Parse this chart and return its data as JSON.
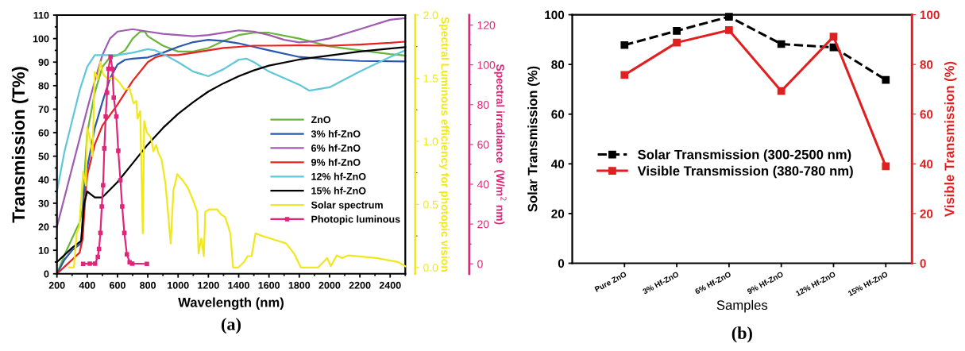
{
  "chart_data": [
    {
      "type": "line",
      "xlabel": "Wavelength (nm)",
      "ylabel": "Transmission (T%)",
      "y2label": "Spectral Luminous efficiency for photopic vision",
      "y3label": "Spectral irradiance  (W/m$^{2}$ nm)",
      "annotations": [
        "(a)"
      ],
      "legend": "center right",
      "xlim": [
        200,
        2500
      ],
      "xticks": [
        200,
        400,
        600,
        800,
        1000,
        1200,
        1400,
        1600,
        1800,
        2000,
        2200,
        2400
      ],
      "ylim": [
        0,
        110
      ],
      "yticks": [
        0,
        10,
        20,
        30,
        40,
        50,
        60,
        70,
        80,
        90,
        100,
        110
      ],
      "y2lim": [
        -0.05,
        2.0
      ],
      "y2ticks": [
        {
          "value": 0,
          "label": "0.0"
        },
        {
          "value": 0.5,
          "label": "0.5"
        },
        {
          "value": 1,
          "label": "1.0"
        },
        {
          "value": 1.5,
          "label": "1.5"
        },
        {
          "value": 2,
          "label": "2.0"
        }
      ],
      "y3lim": [
        -5,
        125
      ],
      "y3ticks": [
        0,
        20,
        40,
        60,
        80,
        100,
        120
      ],
      "series": [
        {
          "name": "ZnO",
          "color": "#6ab53b",
          "x": [
            200,
            250,
            300,
            350,
            370,
            380,
            400,
            450,
            500,
            550,
            600,
            650,
            700,
            750,
            780,
            800,
            900,
            1000,
            1100,
            1200,
            1300,
            1400,
            1500,
            1600,
            1800,
            2000,
            2200,
            2400,
            2500
          ],
          "values": [
            0,
            8,
            15,
            22,
            28,
            40,
            60,
            77,
            88,
            92,
            93,
            95,
            100,
            103,
            103,
            101,
            97,
            94.5,
            94.5,
            96,
            99,
            101.5,
            102.5,
            102.5,
            100,
            96.7,
            95,
            93.4,
            92.8
          ]
        },
        {
          "name": "3% hf-ZnO",
          "color": "#2a57b0",
          "x": [
            200,
            250,
            300,
            360,
            380,
            400,
            450,
            500,
            550,
            600,
            650,
            700,
            800,
            900,
            1000,
            1100,
            1200,
            1300,
            1400,
            1500,
            1600,
            1800,
            2000,
            2200,
            2500
          ],
          "values": [
            0,
            6,
            10,
            13,
            35,
            45,
            62,
            73,
            83,
            89,
            91,
            91.5,
            92,
            94,
            96.5,
            98.5,
            99.5,
            99,
            98,
            96.5,
            95,
            92.2,
            91.1,
            90.5,
            90.3
          ]
        },
        {
          "name": "6% hf-ZnO",
          "color": "#a05cb0",
          "x": [
            200,
            300,
            400,
            450,
            500,
            550,
            600,
            700,
            800,
            900,
            1000,
            1100,
            1200,
            1300,
            1400,
            1500,
            1600,
            1700,
            1800,
            1900,
            2000,
            2200,
            2400,
            2500
          ],
          "values": [
            20,
            45,
            70,
            82,
            93,
            100,
            103,
            104,
            103,
            102,
            101.5,
            101,
            101.5,
            102.5,
            103.5,
            103,
            101.5,
            99.5,
            98.4,
            98.9,
            100.1,
            104,
            108,
            108.7
          ]
        },
        {
          "name": "9% hf-ZnO",
          "color": "#e8231f",
          "x": [
            200,
            250,
            300,
            350,
            370,
            390,
            400,
            450,
            500,
            600,
            700,
            800,
            850,
            900,
            1000,
            1100,
            1200,
            1300,
            1400,
            1500,
            1600,
            1800,
            2000,
            2200,
            2400,
            2500
          ],
          "values": [
            0,
            3,
            6,
            9,
            15,
            35,
            42,
            55,
            63,
            72,
            82,
            90,
            92,
            93,
            93,
            94,
            95,
            96,
            96.5,
            97,
            97,
            97.1,
            97,
            97.5,
            98.2,
            98.7
          ]
        },
        {
          "name": "12% hf-ZnO",
          "color": "#5fc8d8",
          "x": [
            200,
            250,
            300,
            350,
            400,
            450,
            500,
            600,
            700,
            800,
            850,
            900,
            1000,
            1100,
            1200,
            1300,
            1400,
            1450,
            1500,
            1600,
            1800,
            1865,
            2000,
            2200,
            2400,
            2500
          ],
          "values": [
            35,
            52,
            65,
            78,
            88,
            93,
            93,
            93,
            94,
            95.5,
            95,
            93.5,
            90,
            86,
            84,
            87,
            91,
            91.5,
            90,
            86,
            80.4,
            77.9,
            79.3,
            86,
            92.2,
            95
          ]
        },
        {
          "name": "15% hf-ZnO",
          "color": "#000000",
          "x": [
            200,
            300,
            360,
            380,
            400,
            450,
            500,
            600,
            700,
            800,
            900,
            1000,
            1100,
            1200,
            1300,
            1400,
            1500,
            1600,
            1800,
            2000,
            2200,
            2400,
            2500
          ],
          "values": [
            5,
            11,
            14,
            30,
            35,
            32.5,
            32.5,
            39,
            47,
            55,
            62,
            68,
            73,
            77.5,
            81,
            84,
            86.5,
            88.5,
            91.1,
            92.8,
            94.5,
            95.8,
            96.4
          ]
        },
        {
          "name": "Solar spectrum",
          "color": "#f0e81c",
          "axis": "y2",
          "x": [
            280,
            312,
            330,
            347,
            373,
            391,
            400,
            417,
            435,
            449,
            470,
            487,
            505,
            540,
            575,
            610,
            645,
            680,
            706,
            724,
            732,
            750,
            767,
            776,
            794,
            820,
            837,
            855,
            872,
            890,
            916,
            933,
            951,
            969,
            995,
            1030,
            1065,
            1100,
            1126,
            1135,
            1153,
            1170,
            1179,
            1205,
            1258,
            1284,
            1310,
            1345,
            1363,
            1398,
            1433,
            1459,
            1485,
            1511,
            1555,
            1609,
            1714,
            1766,
            1810,
            1924,
            1985,
            2008,
            2047,
            2082,
            2125,
            2309,
            2450,
            2500
          ],
          "values": [
            0.0,
            0.0,
            0.27,
            0.32,
            0.76,
            0.65,
            1.11,
            1.03,
            0.88,
            1.55,
            1.49,
            1.63,
            1.53,
            1.49,
            1.51,
            1.47,
            1.41,
            1.42,
            1.3,
            1.32,
            1.18,
            1.24,
            0.27,
            1.16,
            1.07,
            1.03,
            0.92,
            0.97,
            0.9,
            0.86,
            0.67,
            0.44,
            0.19,
            0.61,
            0.74,
            0.69,
            0.63,
            0.53,
            0.44,
            0.11,
            0.23,
            0.09,
            0.44,
            0.46,
            0.46,
            0.42,
            0.4,
            0.27,
            0.0,
            0.0,
            0.04,
            0.09,
            0.09,
            0.27,
            0.25,
            0.23,
            0.19,
            0.11,
            0.0,
            0.0,
            0.075,
            0.01,
            0.096,
            0.075,
            0.096,
            0.075,
            0.044,
            0.01
          ]
        },
        {
          "name": "Photopic luminous",
          "color": "#e0267a",
          "axis": "y3",
          "marker": "square",
          "x": [
            373,
            417,
            452,
            470,
            478,
            487,
            496,
            505,
            513,
            522,
            531,
            540,
            554,
            566,
            575,
            592,
            605,
            619,
            631,
            645,
            662,
            680,
            697,
            794
          ],
          "values": [
            0,
            0.1,
            0.1,
            3.5,
            7.5,
            15.5,
            28.8,
            39.5,
            58,
            74,
            86,
            98,
            104,
            98,
            83.5,
            74,
            56.8,
            42,
            28.8,
            15.5,
            4.8,
            0.8,
            0.1,
            0
          ]
        }
      ]
    },
    {
      "type": "line",
      "xlabel": "Samples",
      "ylabel": "Solar Transmission (%)",
      "y2label": "Visible Transmission (%)",
      "annotations": [
        "(b)"
      ],
      "legend": "center left",
      "categories": [
        "Pure ZnO",
        "3% Hf-ZnO",
        "6% Hf-ZnO",
        "9% Hf-ZnO",
        "12% Hf-ZnO",
        "15% Hf-ZnO"
      ],
      "ylim": [
        0,
        100
      ],
      "yticks": [
        0,
        20,
        40,
        60,
        80,
        100
      ],
      "y2lim": [
        0,
        100
      ],
      "y2ticks": [
        0,
        20,
        40,
        60,
        80,
        100
      ],
      "marker": "square",
      "series": [
        {
          "name": "Solar Transmission (300-2500 nm)",
          "color": "#000000",
          "line_style": "dashed",
          "values": [
            87.8,
            93.5,
            99.2,
            88.2,
            86.9,
            73.8
          ]
        },
        {
          "name": "Visible Transmission (380-780 nm)",
          "color": "#e02020",
          "axis": "y2",
          "line_style": "solid",
          "values": [
            75.8,
            88.8,
            93.8,
            69.3,
            91.2,
            39.0
          ]
        }
      ]
    }
  ]
}
